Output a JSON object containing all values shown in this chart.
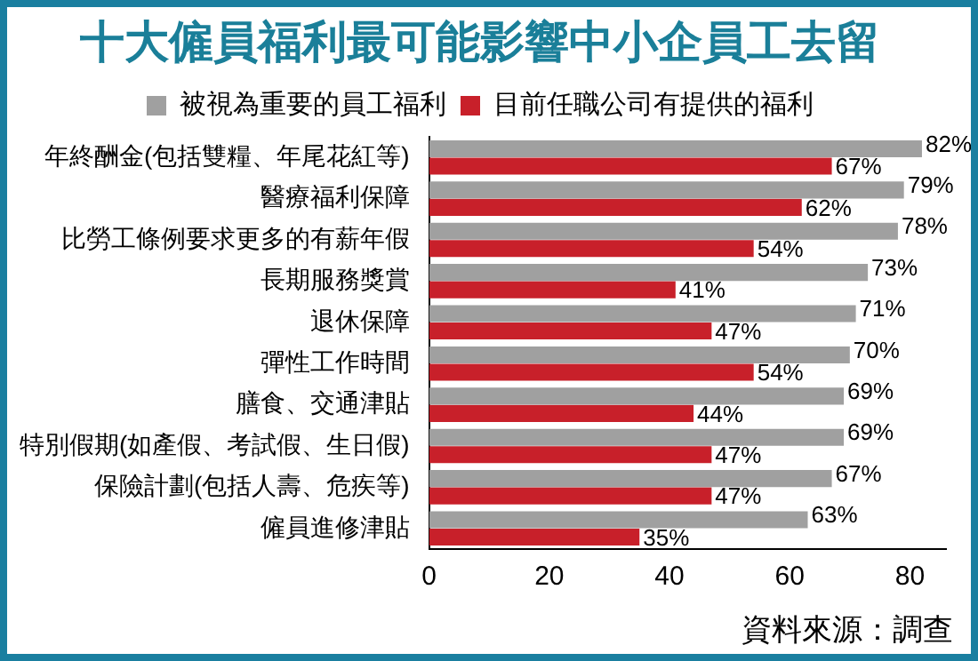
{
  "chart_data": {
    "type": "bar",
    "orientation": "horizontal",
    "title": "十大僱員福利最可能影響中小企員工去留",
    "categories": [
      "年終酬金(包括雙糧、年尾花紅等)",
      "醫療福利保障",
      "比勞工條例要求更多的有薪年假",
      "長期服務獎賞",
      "退休保障",
      "彈性工作時間",
      "膳食、交通津貼",
      "特別假期(如產假、考試假、生日假)",
      "保險計劃(包括人壽、危疾等)",
      "僱員進修津貼"
    ],
    "series": [
      {
        "name": "被視為重要的員工福利",
        "color": "#a0a0a0",
        "values": [
          82,
          79,
          78,
          73,
          71,
          70,
          69,
          69,
          67,
          63
        ],
        "value_labels": [
          "82%",
          "79%",
          "78%",
          "73%",
          "71%",
          "70%",
          "69%",
          "69%",
          "67%",
          "63%"
        ]
      },
      {
        "name": "目前任職公司有提供的福利",
        "color": "#c8202a",
        "values": [
          67,
          62,
          54,
          41,
          47,
          54,
          44,
          47,
          47,
          35
        ],
        "value_labels": [
          "67%",
          "62%",
          "54%",
          "41%",
          "47%",
          "54%",
          "44%",
          "47%",
          "47%",
          "35%"
        ]
      }
    ],
    "xlim": [
      0,
      86
    ],
    "xticks": [
      0,
      20,
      40,
      60,
      80
    ],
    "grid": false,
    "legend": "top",
    "annotations": [
      "資料來源：調查"
    ]
  }
}
